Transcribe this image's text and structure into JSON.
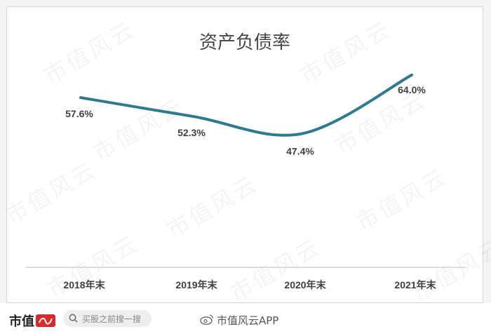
{
  "chart_data": {
    "type": "line",
    "title": "资产负债率",
    "categories": [
      "2018年末",
      "2019年末",
      "2020年末",
      "2021年末"
    ],
    "series": [
      {
        "values": [
          57.6,
          52.3,
          47.4,
          64.0
        ],
        "labels": [
          "57.6%",
          "52.3%",
          "47.4%",
          "64.0%"
        ]
      }
    ],
    "ylim": [
      0,
      70
    ],
    "grid": false,
    "line_color": "#2e7b8f"
  },
  "watermark": "市值风云",
  "footer": {
    "brand": "市值",
    "search_placeholder": "买股之前搜一搜",
    "source": "市值风云APP"
  }
}
